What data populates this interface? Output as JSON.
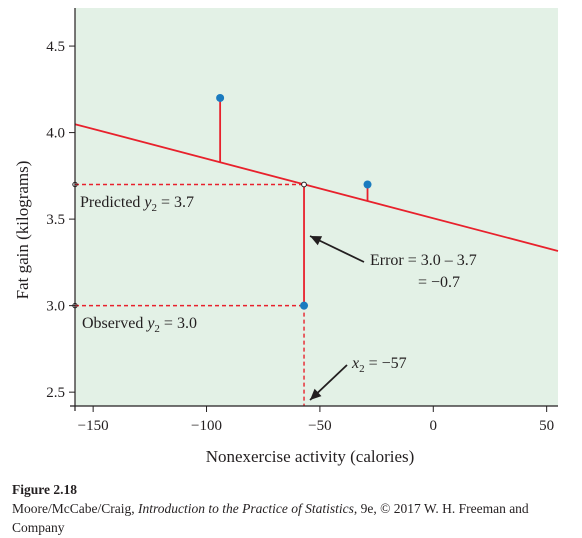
{
  "chart_data": {
    "type": "scatter",
    "xlabel": "Nonexercise activity (calories)",
    "ylabel": "Fat gain (kilograms)",
    "xlim": [
      -158,
      55
    ],
    "ylim": [
      2.42,
      4.72
    ],
    "x_ticks": [
      -150,
      -100,
      -50,
      0,
      50
    ],
    "x_tick_labels": [
      "−150",
      "−100",
      "−50",
      "0",
      "50"
    ],
    "y_ticks": [
      2.5,
      3.0,
      3.5,
      4.0,
      4.5
    ],
    "y_tick_labels": [
      "2.5",
      "3.0",
      "3.5",
      "4.0",
      "4.5"
    ],
    "grid": false,
    "background": "#e3f1e6",
    "points": [
      {
        "x": -94,
        "y": 4.2
      },
      {
        "x": -57,
        "y": 3.0
      },
      {
        "x": -29,
        "y": 3.7
      }
    ],
    "regression_line": {
      "intercept": 3.505,
      "slope": -0.00344,
      "x_range": [
        -158,
        55
      ],
      "color": "#e8212c"
    },
    "residual_color": "#e8212c",
    "point_color": "#1a7bbf",
    "reference_lines": {
      "x": -57,
      "predicted_y": 3.7,
      "observed_y": 3.0,
      "style": "dashed"
    },
    "annotations": {
      "predicted": {
        "main": "Predicted ",
        "var": "y",
        "sub": "2",
        "value": " = 3.7"
      },
      "observed": {
        "main": "Observed ",
        "var": "y",
        "sub": "2",
        "value": " = 3.0"
      },
      "error_line1": "Error = 3.0 – 3.7",
      "error_line2": "= −0.7",
      "x2": {
        "var": "x",
        "sub": "2",
        "value": " = −57"
      }
    }
  },
  "caption": {
    "figure_label": "Figure 2.18",
    "authors": "Moore/McCabe/Craig, ",
    "book": "Introduction to the Practice of Statistics",
    "rest": ", 9e, © 2017 W. H. Freeman and Company"
  }
}
